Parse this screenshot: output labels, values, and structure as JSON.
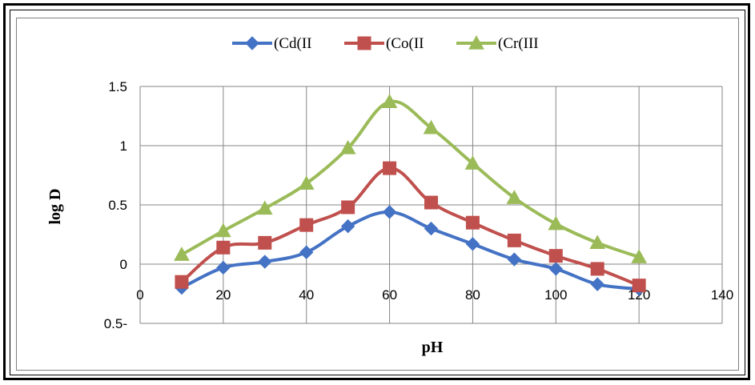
{
  "chart_data": {
    "type": "line",
    "title": "",
    "xlabel": "pH",
    "ylabel": "log D",
    "xlim": [
      0,
      140
    ],
    "ylim": [
      -0.5,
      1.5
    ],
    "x_ticks": [
      "0",
      "20",
      "40",
      "60",
      "80",
      "100",
      "120",
      "140"
    ],
    "y_ticks": [
      "0.5-",
      "0",
      "0.5",
      "1",
      "1.5"
    ],
    "grid": true,
    "legend_position": "top",
    "x": [
      10,
      20,
      30,
      40,
      50,
      60,
      70,
      80,
      90,
      100,
      110,
      120
    ],
    "series": [
      {
        "name": "(Cd(II",
        "color": "#4472C4",
        "marker": "diamond",
        "values": [
          -0.2,
          -0.03,
          0.02,
          0.1,
          0.32,
          0.44,
          0.3,
          0.17,
          0.04,
          -0.04,
          -0.17,
          -0.21
        ]
      },
      {
        "name": "(Co(II",
        "color": "#C0504D",
        "marker": "square",
        "values": [
          -0.15,
          0.14,
          0.18,
          0.33,
          0.48,
          0.81,
          0.52,
          0.35,
          0.2,
          0.07,
          -0.04,
          -0.18
        ]
      },
      {
        "name": "(Cr(III",
        "color": "#9BBB59",
        "marker": "triangle",
        "values": [
          0.08,
          0.28,
          0.47,
          0.68,
          0.98,
          1.37,
          1.15,
          0.85,
          0.56,
          0.34,
          0.18,
          0.06
        ]
      }
    ]
  }
}
